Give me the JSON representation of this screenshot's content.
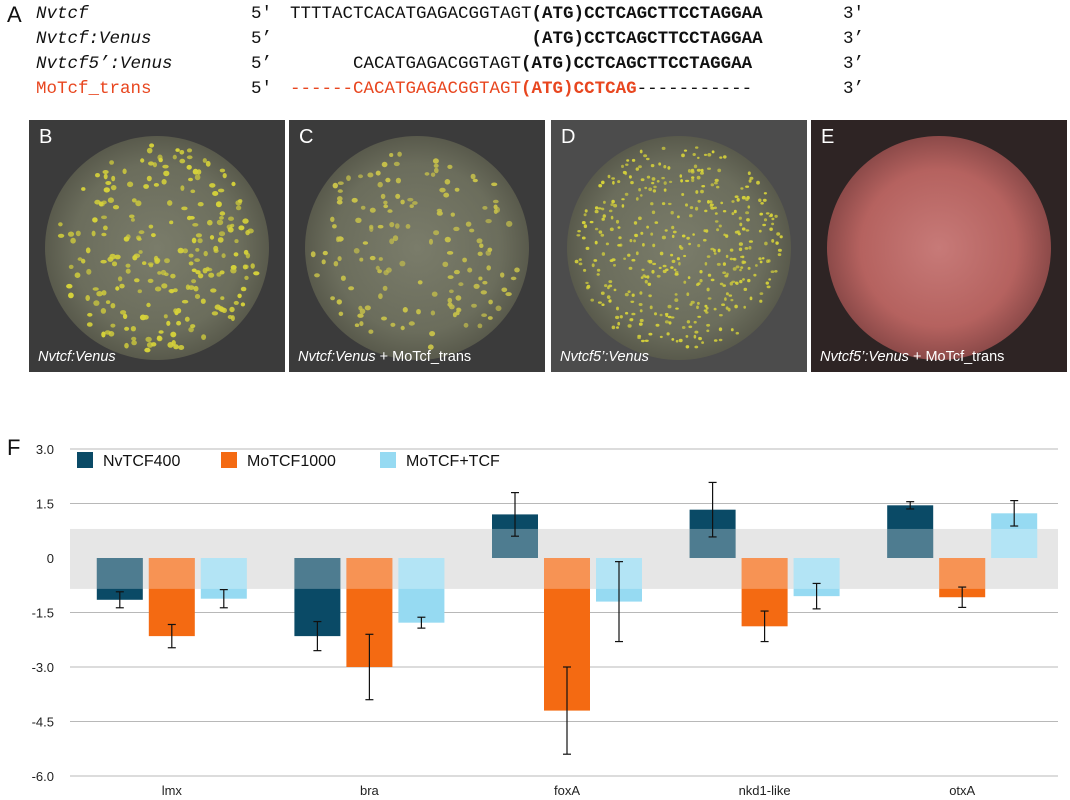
{
  "panel_a": {
    "letter": "A",
    "rows": [
      {
        "name": "Nvtcf",
        "five": "5'",
        "prefix": "TTTTACTCACATGAGACGGTAGT",
        "atg": "(ATG)",
        "after": "CCTCAGCTTCCTAGGAA",
        "tail": "",
        "three": "3'"
      },
      {
        "name": "Nvtcf:Venus",
        "five": "5’",
        "prefix": "                       ",
        "atg": "(ATG)",
        "after": "CCTCAGCTTCCTAGGAA",
        "tail": "",
        "three": "3’"
      },
      {
        "name": "Nvtcf5’:Venus",
        "five": "5’",
        "prefix": "      CACATGAGACGGTAGT",
        "atg": "(ATG)",
        "after": "CCTCAGCTTCCTAGGAA",
        "tail": "",
        "three": "3’"
      },
      {
        "name": "MoTcf_trans",
        "five": "5'",
        "prefix": "------CACATGAGACGGTAGT",
        "atg": "(ATG)",
        "after": "CCTCAG",
        "tail": "-----------",
        "three": "3’"
      }
    ]
  },
  "image_panels": [
    {
      "letter": "B",
      "caption_italic": "Nvtcf:Venus",
      "caption_rest": "",
      "style": "yellow-dense"
    },
    {
      "letter": "C",
      "caption_italic": "Nvtcf:Venus",
      "caption_rest": " + MoTcf_trans",
      "style": "yellow-sparse"
    },
    {
      "letter": "D",
      "caption_italic": "Nvtcf5’:Venus",
      "caption_rest": "",
      "style": "yellow-fine"
    },
    {
      "letter": "E",
      "caption_italic": "Nvtcf5’:Venus",
      "caption_rest": " + MoTcf_trans",
      "style": "red"
    }
  ],
  "panel_f_letter": "F",
  "colors": {
    "nv": "#0a4a66",
    "mo": "#f46a12",
    "motcf": "#96daf2",
    "band": "#e6e6e6",
    "grid": "#b8b8b8",
    "red_text": "#e8461f"
  },
  "chart_data": {
    "type": "bar",
    "categories": [
      "lmx",
      "bra",
      "foxA",
      "nkd1-like",
      "otxA"
    ],
    "ylim": [
      -6.0,
      3.0
    ],
    "yticks": [
      "3.0",
      "1.5",
      "0",
      "-1.5",
      "-3.0",
      "-4.5",
      "-6.0"
    ],
    "band": [
      -0.85,
      0.8
    ],
    "legend_position": "top-left",
    "series": [
      {
        "name": "NvTCF400",
        "values": [
          -1.15,
          -2.15,
          1.2,
          1.33,
          1.45
        ],
        "errors": [
          0.22,
          0.4,
          0.6,
          0.75,
          0.1
        ]
      },
      {
        "name": "MoTCF1000",
        "values": [
          -2.15,
          -3.0,
          -4.2,
          -1.88,
          -1.08
        ],
        "errors": [
          0.32,
          0.9,
          1.2,
          0.42,
          0.28
        ]
      },
      {
        "name": "MoTCF+TCF",
        "values": [
          -1.12,
          -1.78,
          -1.2,
          -1.05,
          1.23
        ],
        "errors": [
          0.25,
          0.15,
          1.1,
          0.35,
          0.35
        ]
      }
    ]
  }
}
